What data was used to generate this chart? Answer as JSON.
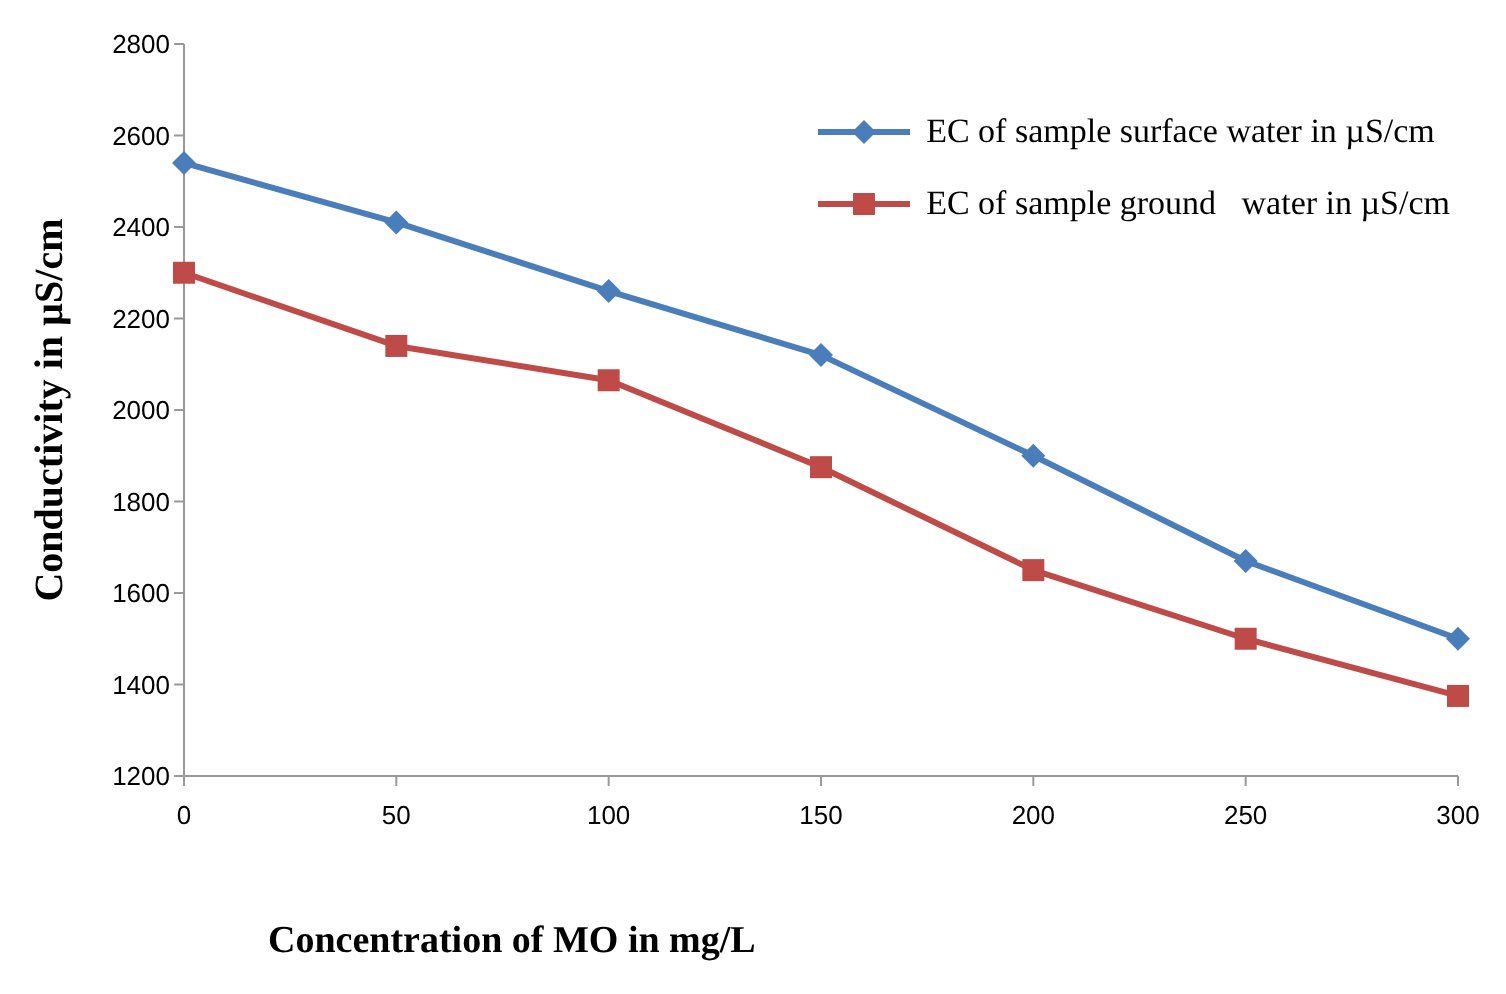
{
  "chart_data": {
    "type": "line",
    "xlabel": "Concentration of MO in mg/L",
    "ylabel": "Conductivity in µS/cm",
    "x": [
      0,
      50,
      100,
      150,
      200,
      250,
      300
    ],
    "series": [
      {
        "name": "EC of sample surface water in µS/cm",
        "color": "#4a7ebb",
        "marker": "diamond",
        "values": [
          2540,
          2410,
          2260,
          2120,
          1900,
          1670,
          1500
        ]
      },
      {
        "name": "EC of sample ground   water in µS/cm",
        "color": "#be4b48",
        "marker": "square",
        "values": [
          2300,
          2140,
          2065,
          1875,
          1650,
          1500,
          1375
        ]
      }
    ],
    "xlim": [
      0,
      300
    ],
    "xticks": [
      0,
      50,
      100,
      150,
      200,
      250,
      300
    ],
    "ylim": [
      1200,
      2800
    ],
    "yticks": [
      1200,
      1400,
      1600,
      1800,
      2000,
      2200,
      2400,
      2600,
      2800
    ],
    "grid": false,
    "legend": "top right",
    "line_style": "solid"
  }
}
